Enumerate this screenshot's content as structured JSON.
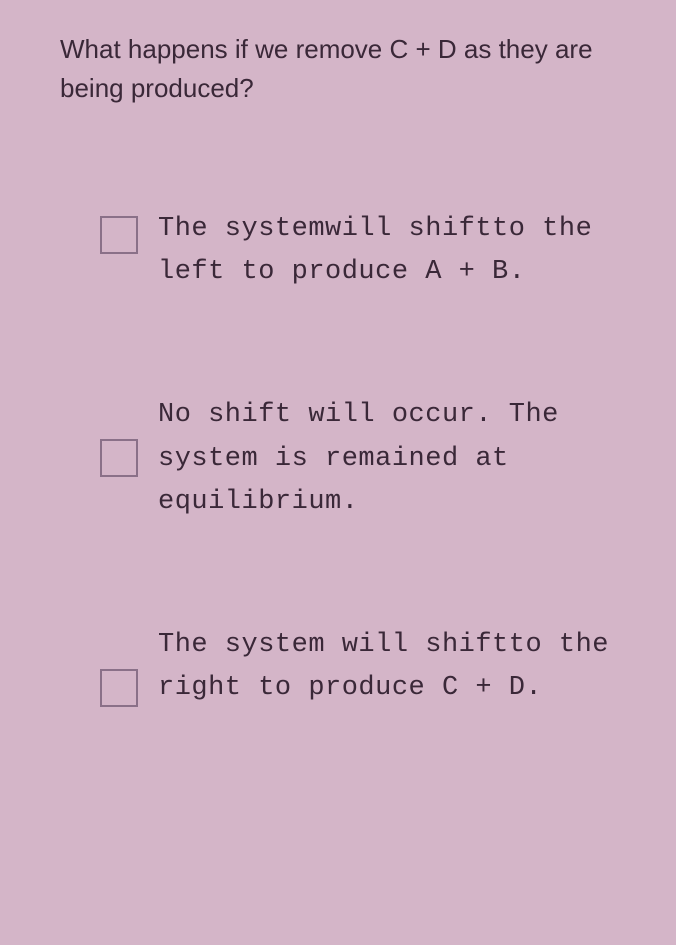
{
  "question": {
    "text": "What happens if we remove C + D as they are being produced?",
    "fontsize": 26,
    "color": "#3a2838"
  },
  "options": [
    {
      "text": "The systemwill shiftto the left to produce A + B.",
      "checked": false
    },
    {
      "text": "No shift will occur. The system is remained at equilibrium.",
      "checked": false
    },
    {
      "text": "The system will shiftto the right to produce C + D.",
      "checked": false
    }
  ],
  "styling": {
    "background_color": "#d4b5c8",
    "option_font": "Courier New",
    "option_fontsize": 27,
    "option_color": "#3a2838",
    "checkbox_border_color": "#8a7088",
    "checkbox_size": 38
  }
}
